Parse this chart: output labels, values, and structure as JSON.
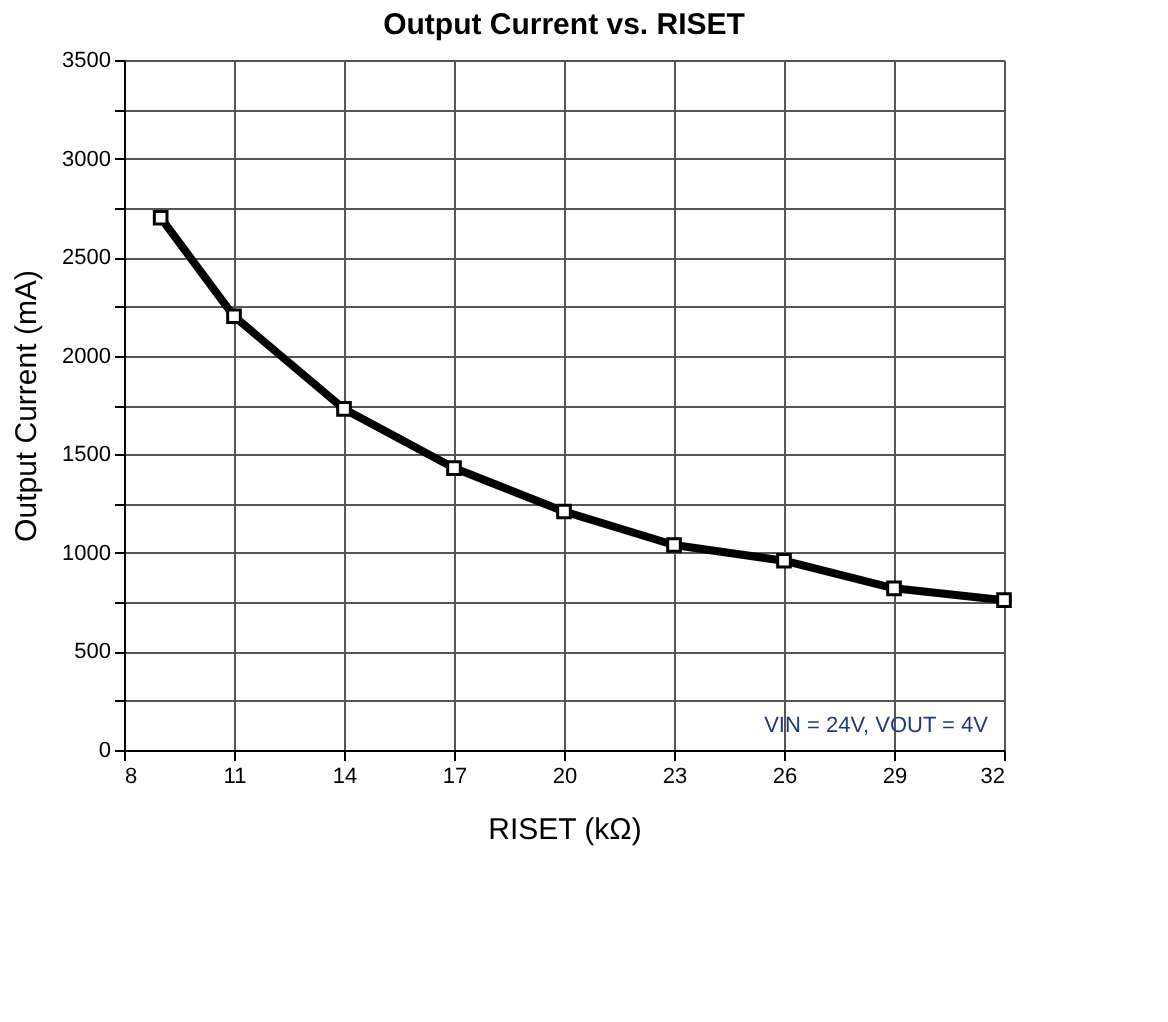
{
  "chart_data": {
    "type": "line",
    "title": "Output Current vs. RISET",
    "xlabel": "RISET (kΩ)",
    "ylabel": "Output Current (mA)",
    "x": [
      9,
      11,
      14,
      17,
      20,
      23,
      26,
      29,
      32
    ],
    "series": [
      {
        "color": "#000000",
        "values": [
          2700,
          2200,
          1730,
          1430,
          1210,
          1040,
          960,
          820,
          760
        ]
      }
    ],
    "xlim": [
      8,
      32
    ],
    "xticks": [
      8,
      11,
      14,
      17,
      20,
      23,
      26,
      29,
      32
    ],
    "ylim": [
      0,
      3500
    ],
    "yticks": [
      0,
      {
        "value": 250,
        "label": null
      },
      500,
      {
        "value": 750,
        "label": null
      },
      1000,
      {
        "value": 1250,
        "label": null
      },
      1500,
      {
        "value": 1750,
        "label": null
      },
      2000,
      {
        "value": 2250,
        "label": null
      },
      2500,
      {
        "value": 2750,
        "label": null
      },
      3000,
      {
        "value": 3250,
        "label": null
      },
      3500
    ],
    "grid": true,
    "marker": "square",
    "line_style": "solid",
    "annotations": [
      "VIN = 24V, VOUT = 4V"
    ]
  }
}
